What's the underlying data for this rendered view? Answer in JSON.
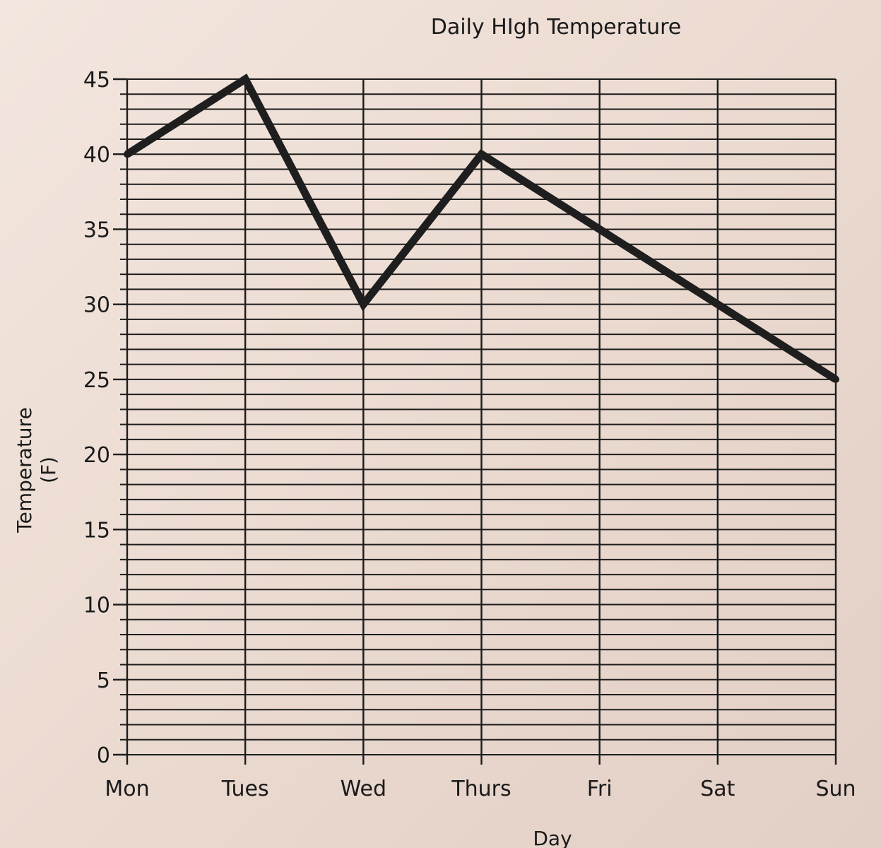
{
  "chart_data": {
    "type": "line",
    "title": "Daily HIgh Temperature",
    "xlabel": "Day",
    "ylabel_line1": "Temperature",
    "ylabel_line2": "(F)",
    "categories": [
      "Mon",
      "Tues",
      "Wed",
      "Thurs",
      "Fri",
      "Sat",
      "Sun"
    ],
    "values": [
      40,
      45,
      30,
      40,
      35,
      30,
      25
    ],
    "ylim": [
      0,
      45
    ],
    "yticks": [
      0,
      5,
      10,
      15,
      20,
      25,
      30,
      35,
      40,
      45
    ],
    "minor_step": 1,
    "grid": true,
    "legend": "none"
  }
}
